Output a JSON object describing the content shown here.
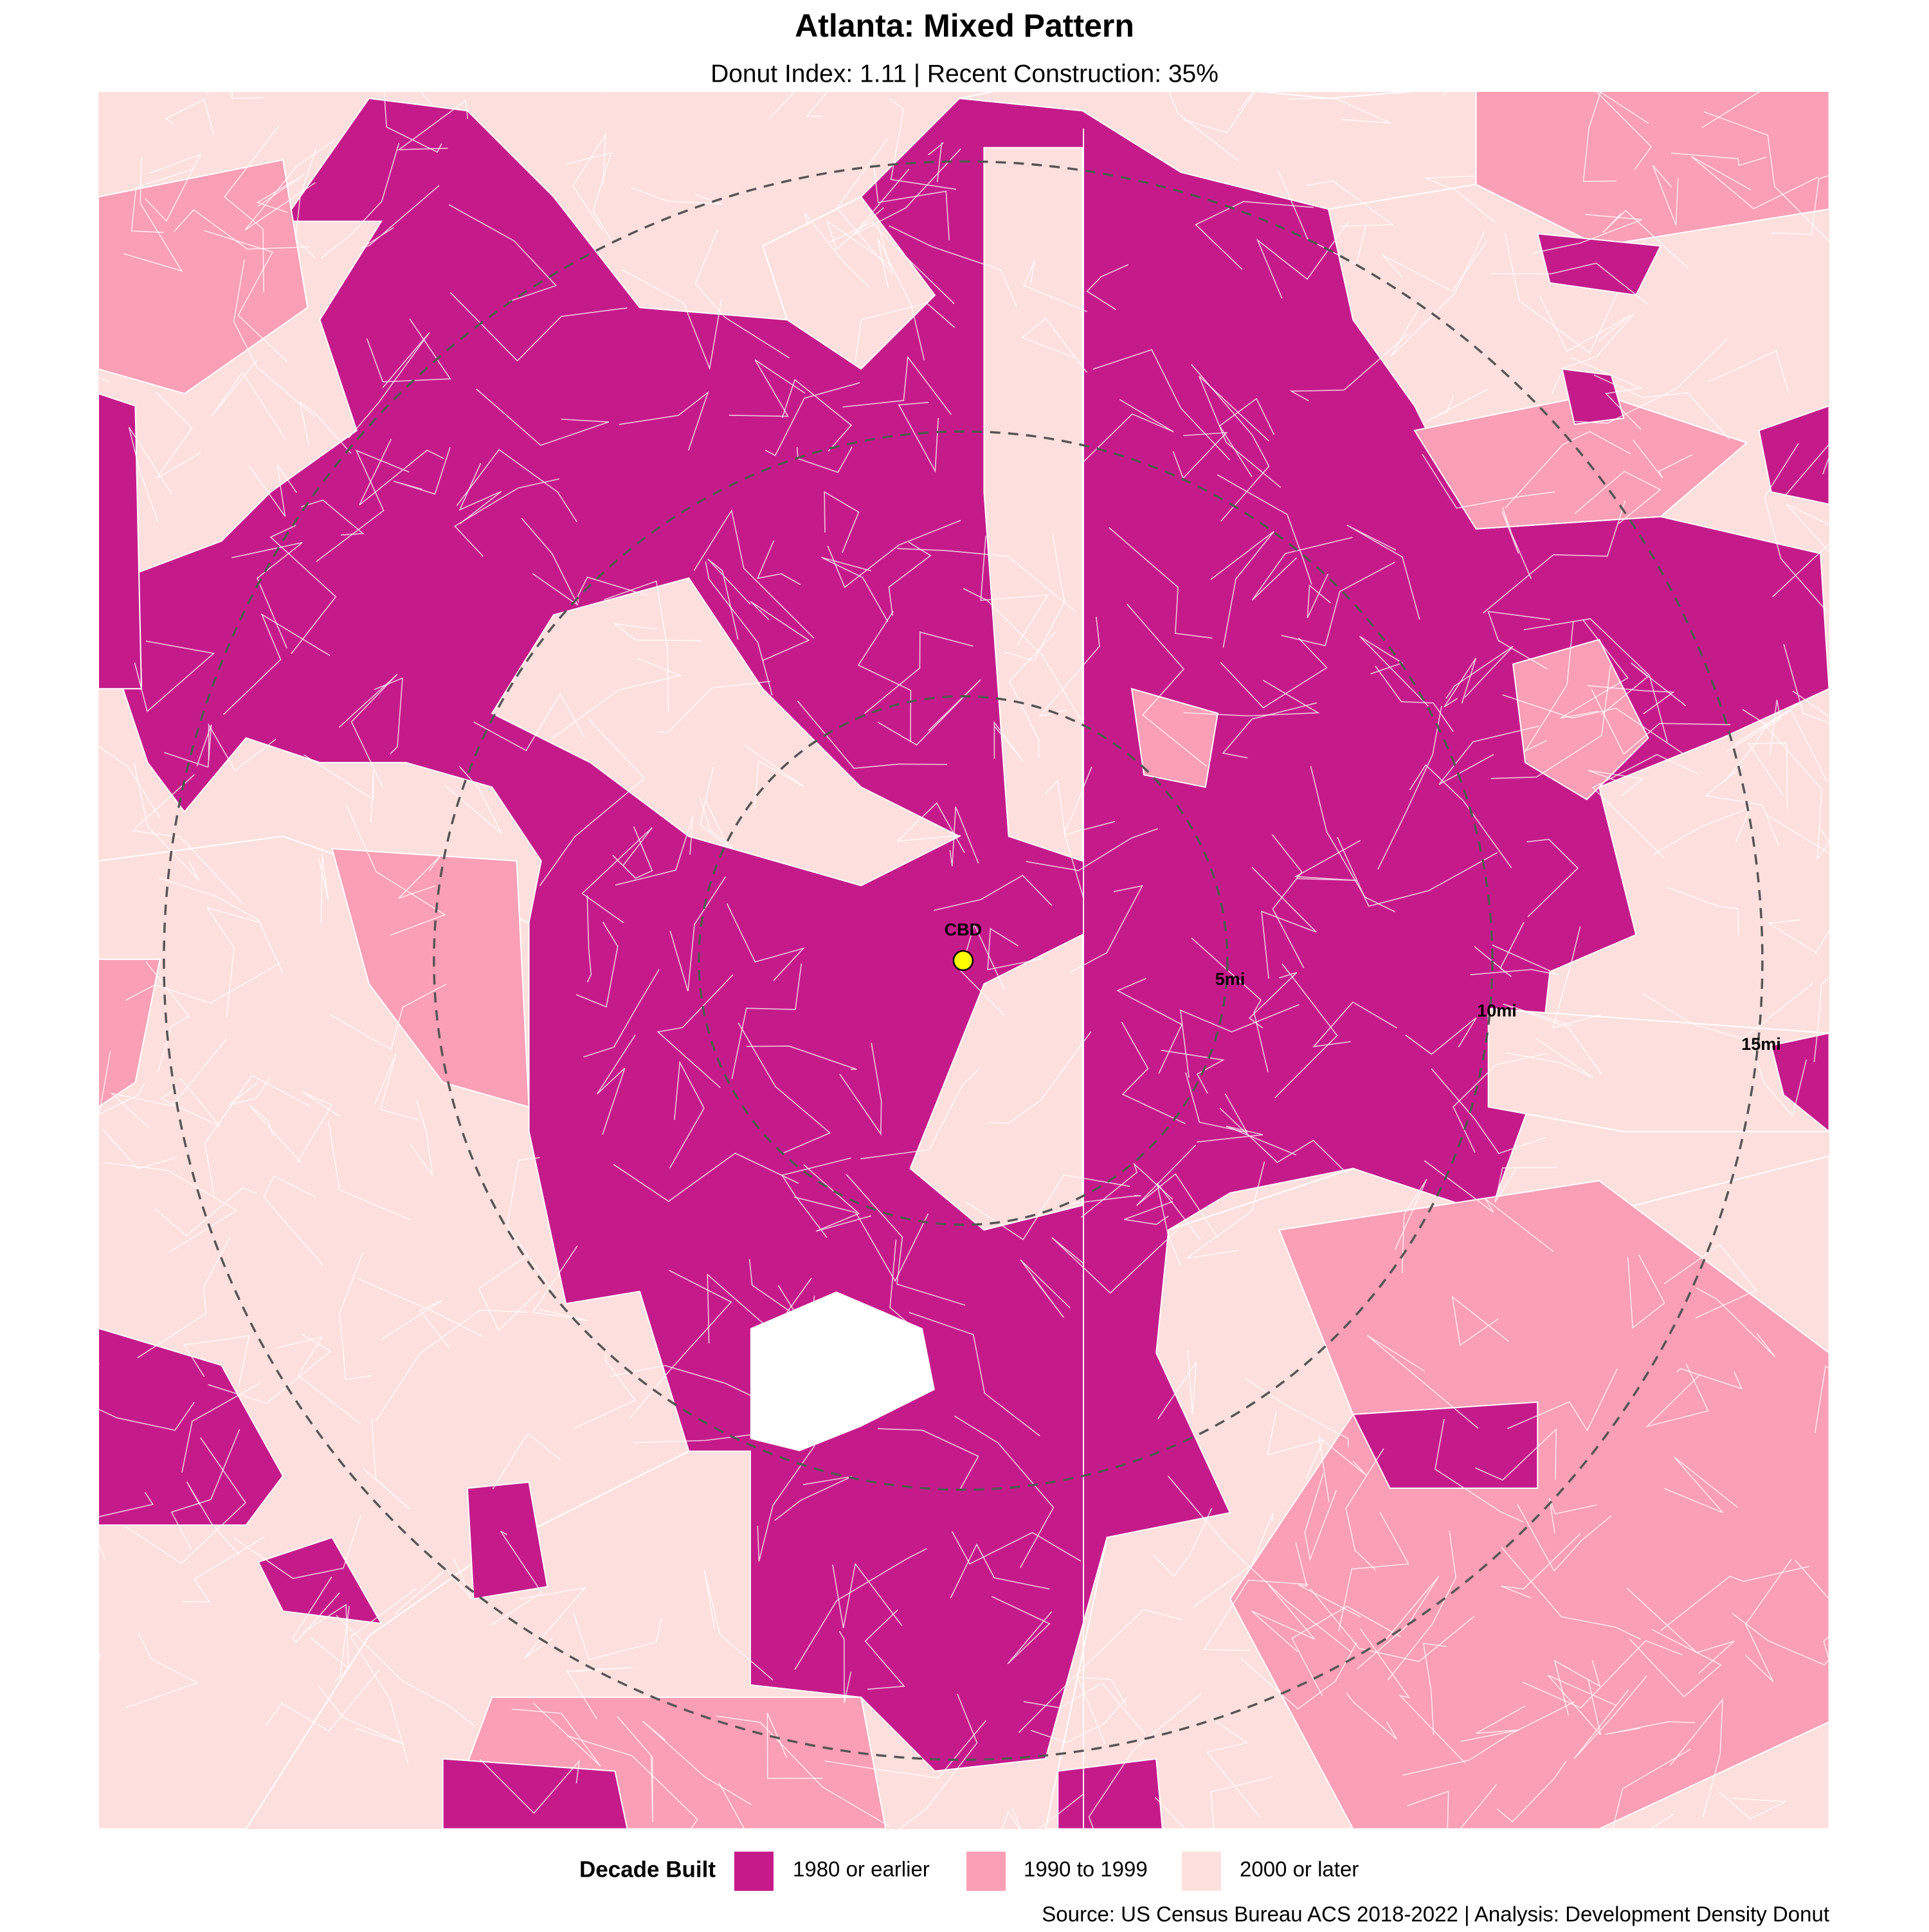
{
  "header": {
    "title": "Atlanta: Mixed Pattern",
    "subtitle": "Donut Index: 1.11 | Recent Construction: 35%"
  },
  "map": {
    "center_label": "CBD",
    "rings": [
      "5mi",
      "10mi",
      "15mi"
    ]
  },
  "legend": {
    "title": "Decade Built",
    "items": [
      {
        "label": "1980 or earlier",
        "color": "#c51b8a"
      },
      {
        "label": "1990 to 1999",
        "color": "#fa9fb5"
      },
      {
        "label": "2000 or later",
        "color": "#fde0dd"
      }
    ]
  },
  "source": "Source: US Census Bureau ACS 2018-2022 | Analysis: Development Density Donut"
}
